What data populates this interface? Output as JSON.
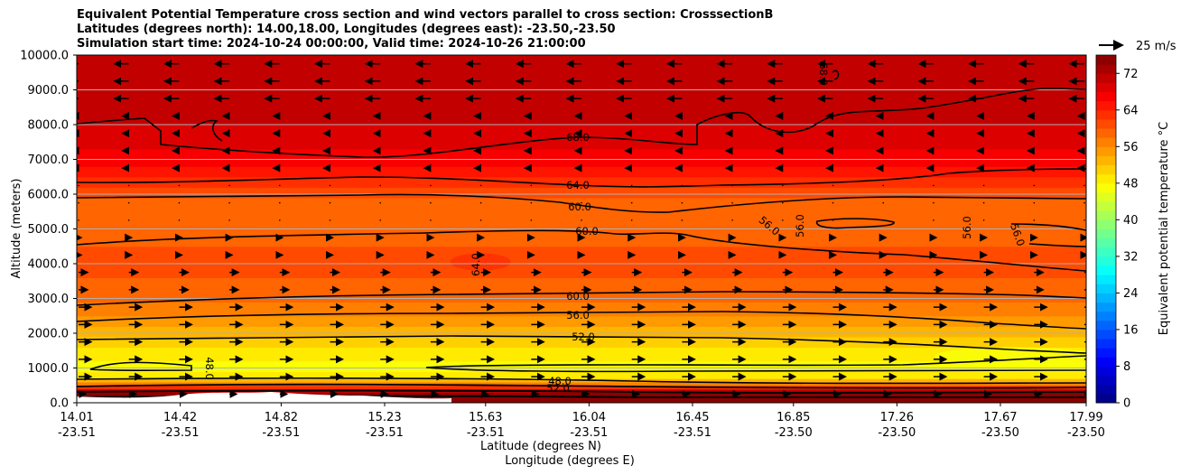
{
  "chart_data": {
    "type": "heatmap",
    "title_lines": [
      "Equivalent Potential Temperature cross section and wind vectors parallel to cross section: CrosssectionB",
      "Latitudes (degrees north): 14.00,18.00, Longitudes (degrees east): -23.50,-23.50",
      "Simulation start time: 2024-10-24 00:00:00, Valid time: 2024-10-26 21:00:00"
    ],
    "ylabel": "Altitude (meters)",
    "xlabel_lat": "Latitude (degrees N)",
    "xlabel_lon": "Longitude (degrees E)",
    "ylim": [
      0,
      10000
    ],
    "yticks": [
      "0.0",
      "1000.0",
      "2000.0",
      "3000.0",
      "4000.0",
      "5000.0",
      "6000.0",
      "7000.0",
      "8000.0",
      "9000.0",
      "10000.0"
    ],
    "xticks": [
      {
        "lat": "14.01",
        "lon": "-23.51",
        "pos": 0.0
      },
      {
        "lat": "14.42",
        "lon": "-23.51",
        "pos": 0.1025
      },
      {
        "lat": "14.82",
        "lon": "-23.51",
        "pos": 0.2025
      },
      {
        "lat": "15.23",
        "lon": "-23.51",
        "pos": 0.305
      },
      {
        "lat": "15.63",
        "lon": "-23.51",
        "pos": 0.405
      },
      {
        "lat": "16.04",
        "lon": "-23.51",
        "pos": 0.5075
      },
      {
        "lat": "16.45",
        "lon": "-23.51",
        "pos": 0.61
      },
      {
        "lat": "16.85",
        "lon": "-23.50",
        "pos": 0.71
      },
      {
        "lat": "17.26",
        "lon": "-23.50",
        "pos": 0.8125
      },
      {
        "lat": "17.67",
        "lon": "-23.50",
        "pos": 0.915
      },
      {
        "lat": "17.99",
        "lon": "-23.50",
        "pos": 1.0
      }
    ],
    "colorbar": {
      "label": "Equivalent potential temperature °C",
      "min": 0,
      "max": 76,
      "ticks": [
        "0",
        "8",
        "16",
        "24",
        "32",
        "40",
        "48",
        "56",
        "64",
        "72"
      ]
    },
    "wind_key": "25 m/s",
    "contour_labels": [
      "68.0",
      "64.0",
      "60.0",
      "60.0",
      "56.0",
      "64.0",
      "60.0",
      "56.0",
      "52.0",
      "48.0",
      "48.0",
      "52.0",
      "56.0",
      "56.0",
      "56.0",
      "68.0"
    ],
    "vertical_profile": [
      {
        "alt": 0,
        "theta": 76
      },
      {
        "alt": 300,
        "theta": 74
      },
      {
        "alt": 500,
        "theta": 60
      },
      {
        "alt": 700,
        "theta": 50
      },
      {
        "alt": 1000,
        "theta": 47
      },
      {
        "alt": 1500,
        "theta": 49
      },
      {
        "alt": 2000,
        "theta": 53
      },
      {
        "alt": 2500,
        "theta": 56
      },
      {
        "alt": 3000,
        "theta": 58.5
      },
      {
        "alt": 4000,
        "theta": 61
      },
      {
        "alt": 5000,
        "theta": 59
      },
      {
        "alt": 5700,
        "theta": 58
      },
      {
        "alt": 6300,
        "theta": 63
      },
      {
        "alt": 7000,
        "theta": 67
      },
      {
        "alt": 8000,
        "theta": 70
      },
      {
        "alt": 9000,
        "theta": 70.5
      },
      {
        "alt": 10000,
        "theta": 72
      }
    ]
  }
}
